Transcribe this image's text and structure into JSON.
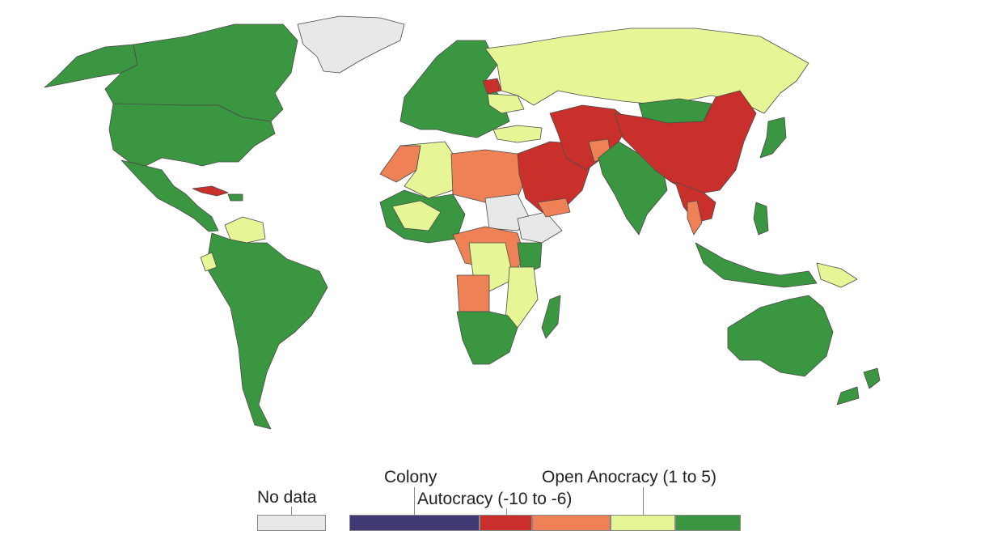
{
  "colors": {
    "no_data": "#e8e8e8",
    "colony": "#3f3a73",
    "autocracy": "#c9302c",
    "closed_anocracy": "#ef8157",
    "open_anocracy": "#e6f596",
    "democracy": "#3a9640",
    "border": "#4a4a4a"
  },
  "legend": {
    "no_data": "No data",
    "colony": "Colony",
    "autocracy": "Autocracy (-10 to -6)",
    "open_anocracy": "Open Anocracy (1 to 5)"
  },
  "icons": [
    "world-map"
  ]
}
